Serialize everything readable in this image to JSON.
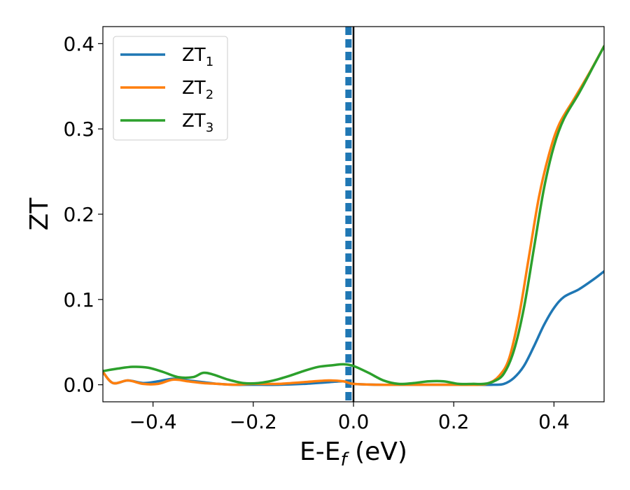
{
  "chart_data": {
    "type": "line",
    "xlabel": "E-E",
    "xlabel_sub": "f",
    "xlabel_unit": " (eV)",
    "ylabel": "ZT",
    "xlim": [
      -0.5,
      0.5
    ],
    "ylim": [
      -0.02,
      0.42
    ],
    "x_ticks": [
      -0.4,
      -0.2,
      0.0,
      0.2,
      0.4
    ],
    "x_tick_labels": [
      "−0.4",
      "−0.2",
      "0.0",
      "0.2",
      "0.4"
    ],
    "y_ticks": [
      0.0,
      0.1,
      0.2,
      0.3,
      0.4
    ],
    "y_tick_labels": [
      "0.0",
      "0.1",
      "0.2",
      "0.3",
      "0.4"
    ],
    "grid": false,
    "legend_position": "top-left",
    "reference_lines": [
      {
        "x": 0.0,
        "style": "solid",
        "color": "#000000"
      },
      {
        "x": -0.01,
        "style": "dashed",
        "color": "#1f77b4"
      }
    ],
    "series": [
      {
        "name": "ZT",
        "name_sub": "1",
        "color": "#1f77b4",
        "points": [
          [
            -0.5,
            0.015
          ],
          [
            -0.48,
            0.002
          ],
          [
            -0.45,
            0.005
          ],
          [
            -0.42,
            0.002
          ],
          [
            -0.39,
            0.004
          ],
          [
            -0.36,
            0.007
          ],
          [
            -0.33,
            0.005
          ],
          [
            -0.3,
            0.003
          ],
          [
            -0.27,
            0.001
          ],
          [
            -0.24,
            0.0
          ],
          [
            -0.2,
            0.0
          ],
          [
            -0.15,
            0.0
          ],
          [
            -0.1,
            0.001
          ],
          [
            -0.05,
            0.003
          ],
          [
            -0.02,
            0.004
          ],
          [
            0.0,
            0.001
          ],
          [
            0.05,
            0.0
          ],
          [
            0.1,
            0.0
          ],
          [
            0.15,
            0.0
          ],
          [
            0.2,
            0.0
          ],
          [
            0.25,
            0.0
          ],
          [
            0.28,
            0.0
          ],
          [
            0.3,
            0.001
          ],
          [
            0.32,
            0.008
          ],
          [
            0.34,
            0.022
          ],
          [
            0.36,
            0.045
          ],
          [
            0.38,
            0.07
          ],
          [
            0.4,
            0.09
          ],
          [
            0.42,
            0.103
          ],
          [
            0.45,
            0.112
          ],
          [
            0.48,
            0.124
          ],
          [
            0.5,
            0.133
          ]
        ]
      },
      {
        "name": "ZT",
        "name_sub": "2",
        "color": "#ff7f0e",
        "points": [
          [
            -0.5,
            0.015
          ],
          [
            -0.48,
            0.002
          ],
          [
            -0.45,
            0.005
          ],
          [
            -0.42,
            0.001
          ],
          [
            -0.39,
            0.001
          ],
          [
            -0.36,
            0.006
          ],
          [
            -0.33,
            0.004
          ],
          [
            -0.3,
            0.002
          ],
          [
            -0.27,
            0.001
          ],
          [
            -0.24,
            0.0
          ],
          [
            -0.2,
            0.001
          ],
          [
            -0.15,
            0.001
          ],
          [
            -0.1,
            0.003
          ],
          [
            -0.05,
            0.005
          ],
          [
            -0.02,
            0.004
          ],
          [
            0.0,
            0.001
          ],
          [
            0.05,
            0.0
          ],
          [
            0.1,
            0.0
          ],
          [
            0.15,
            0.0
          ],
          [
            0.2,
            0.0
          ],
          [
            0.25,
            0.0
          ],
          [
            0.27,
            0.002
          ],
          [
            0.29,
            0.01
          ],
          [
            0.31,
            0.03
          ],
          [
            0.33,
            0.08
          ],
          [
            0.35,
            0.15
          ],
          [
            0.37,
            0.22
          ],
          [
            0.39,
            0.27
          ],
          [
            0.41,
            0.305
          ],
          [
            0.44,
            0.335
          ],
          [
            0.47,
            0.365
          ],
          [
            0.5,
            0.397
          ]
        ]
      },
      {
        "name": "ZT",
        "name_sub": "3",
        "color": "#2ca02c",
        "points": [
          [
            -0.5,
            0.016
          ],
          [
            -0.47,
            0.019
          ],
          [
            -0.44,
            0.021
          ],
          [
            -0.41,
            0.02
          ],
          [
            -0.38,
            0.015
          ],
          [
            -0.35,
            0.009
          ],
          [
            -0.32,
            0.009
          ],
          [
            -0.3,
            0.014
          ],
          [
            -0.28,
            0.012
          ],
          [
            -0.25,
            0.006
          ],
          [
            -0.22,
            0.002
          ],
          [
            -0.19,
            0.002
          ],
          [
            -0.16,
            0.005
          ],
          [
            -0.13,
            0.01
          ],
          [
            -0.1,
            0.016
          ],
          [
            -0.07,
            0.021
          ],
          [
            -0.04,
            0.023
          ],
          [
            -0.02,
            0.024
          ],
          [
            0.0,
            0.022
          ],
          [
            0.03,
            0.014
          ],
          [
            0.06,
            0.005
          ],
          [
            0.09,
            0.001
          ],
          [
            0.12,
            0.002
          ],
          [
            0.15,
            0.004
          ],
          [
            0.18,
            0.004
          ],
          [
            0.21,
            0.001
          ],
          [
            0.24,
            0.001
          ],
          [
            0.26,
            0.001
          ],
          [
            0.28,
            0.004
          ],
          [
            0.3,
            0.013
          ],
          [
            0.32,
            0.04
          ],
          [
            0.34,
            0.09
          ],
          [
            0.36,
            0.16
          ],
          [
            0.38,
            0.23
          ],
          [
            0.4,
            0.28
          ],
          [
            0.42,
            0.312
          ],
          [
            0.45,
            0.342
          ],
          [
            0.48,
            0.375
          ],
          [
            0.5,
            0.397
          ]
        ]
      }
    ]
  }
}
